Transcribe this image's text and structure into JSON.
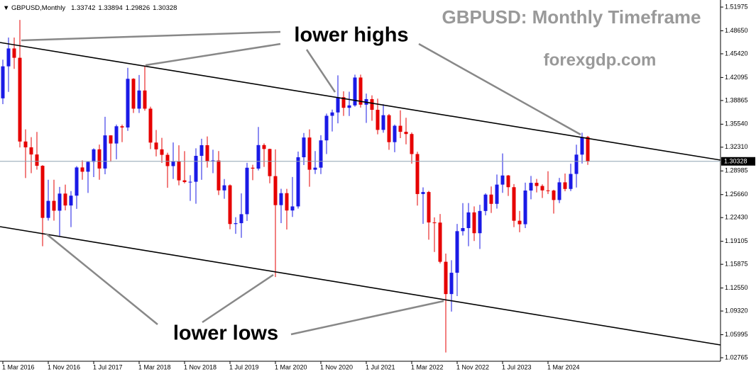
{
  "chart_data": {
    "type": "candlestick",
    "title": "GBPUSD: Monthly Timeframe",
    "subtitle": "forexgdp.com",
    "symbol": "GBPUSD,Monthly",
    "annotations": [
      "lower highs",
      "lower lows"
    ],
    "up_color": "#1a1ae6",
    "down_color": "#e60000",
    "categories": [
      "1 Mar 2016",
      null,
      null,
      null,
      null,
      null,
      null,
      null,
      "1 Nov 2016",
      null,
      null,
      null,
      null,
      null,
      null,
      null,
      "1 Jul 2017",
      null,
      null,
      null,
      null,
      null,
      null,
      null,
      "1 Mar 2018",
      null,
      null,
      null,
      null,
      null,
      null,
      null,
      "1 Nov 2018",
      null,
      null,
      null,
      null,
      null,
      null,
      null,
      "1 Jul 2019",
      null,
      null,
      null,
      null,
      null,
      null,
      null,
      "1 Mar 2020",
      null,
      null,
      null,
      null,
      null,
      null,
      null,
      "1 Nov 2020",
      null,
      null,
      null,
      null,
      null,
      null,
      null,
      "1 Jul 2021",
      null,
      null,
      null,
      null,
      null,
      null,
      null,
      "1 Mar 2022",
      null,
      null,
      null,
      null,
      null,
      null,
      null,
      "1 Nov 2022",
      null,
      null,
      null,
      null,
      null,
      null,
      null,
      "1 Jul 2023",
      null,
      null,
      null,
      null,
      null,
      null,
      null,
      "1 Mar 2024",
      null,
      null,
      null,
      null,
      null,
      null,
      null
    ],
    "open": [
      1.3917,
      1.4366,
      1.4617,
      1.4486,
      1.3311,
      1.3229,
      1.3129,
      1.297,
      1.2239,
      1.2478,
      1.234,
      1.258,
      1.2413,
      1.2551,
      1.2947,
      1.2887,
      1.3025,
      1.3201,
      1.2932,
      1.3397,
      1.3283,
      1.3525,
      1.3508,
      1.4191,
      1.3772,
      1.4027,
      1.3772,
      1.3296,
      1.3201,
      1.3124,
      1.2966,
      1.3031,
      1.2766,
      1.2742,
      1.2746,
      1.311,
      1.3259,
      1.3031,
      1.3045,
      1.2625,
      1.2696,
      1.2153,
      1.2165,
      1.2291,
      1.2943,
      1.2931,
      1.3261,
      1.3206,
      1.2825,
      1.2418,
      1.2586,
      1.2343,
      1.24,
      1.309,
      1.3367,
      1.2915,
      1.2944,
      1.3327,
      1.3672,
      1.3719,
      1.3933,
      1.3784,
      1.3818,
      1.4209,
      1.3828,
      1.3906,
      1.3756,
      1.3474,
      1.368,
      1.3302,
      1.3532,
      1.3447,
      1.3416,
      1.3135,
      1.2574,
      1.2602,
      1.2175,
      1.2173,
      1.1623,
      1.117,
      1.1469,
      1.2053,
      1.2096,
      1.2316,
      1.2024,
      1.2336,
      1.2566,
      1.2436,
      1.2706,
      1.2834,
      1.267,
      1.2199,
      1.215,
      1.2623,
      1.2731,
      1.2687,
      1.2625,
      1.2623,
      1.249,
      1.2738,
      1.2645,
      1.2856,
      1.3127,
      1.33742
    ],
    "high": [
      1.4459,
      1.477,
      1.477,
      1.5018,
      1.3482,
      1.3372,
      1.3445,
      1.2979,
      1.2775,
      1.2775,
      1.2674,
      1.2706,
      1.2615,
      1.2966,
      1.3047,
      1.303,
      1.3216,
      1.3268,
      1.3658,
      1.34,
      1.3549,
      1.3549,
      1.4345,
      1.42,
      1.4245,
      1.4377,
      1.38,
      1.3473,
      1.3362,
      1.3153,
      1.3298,
      1.3258,
      1.3176,
      1.2838,
      1.3215,
      1.335,
      1.3382,
      1.3196,
      1.3177,
      1.2784,
      1.2709,
      1.2249,
      1.2583,
      1.3012,
      1.2985,
      1.3515,
      1.3284,
      1.3211,
      1.3201,
      1.2648,
      1.2646,
      1.2813,
      1.3169,
      1.3431,
      1.3482,
      1.3177,
      1.3399,
      1.3703,
      1.3758,
      1.424,
      1.4016,
      1.4009,
      1.4249,
      1.425,
      1.3984,
      1.3959,
      1.3913,
      1.3835,
      1.3698,
      1.3548,
      1.3749,
      1.3644,
      1.3438,
      1.3167,
      1.2667,
      1.2618,
      1.2246,
      1.2293,
      1.1738,
      1.1645,
      1.2154,
      1.2446,
      1.2448,
      1.2401,
      1.2423,
      1.2584,
      1.268,
      1.2848,
      1.3143,
      1.2842,
      1.2713,
      1.2337,
      1.2733,
      1.2828,
      1.2785,
      1.271,
      1.2894,
      1.2634,
      1.2801,
      1.2861,
      1.2999,
      1.3266,
      1.3434,
      1.33894
    ],
    "low": [
      1.3836,
      1.4007,
      1.433,
      1.3228,
      1.2798,
      1.2866,
      1.2916,
      1.1841,
      1.2201,
      1.22,
      1.1987,
      1.2345,
      1.2109,
      1.2365,
      1.2774,
      1.2589,
      1.2812,
      1.2774,
      1.2852,
      1.3027,
      1.3062,
      1.3302,
      1.346,
      1.3712,
      1.3711,
      1.3744,
      1.3204,
      1.3102,
      1.3011,
      1.2661,
      1.2786,
      1.2696,
      1.2723,
      1.2477,
      1.2438,
      1.2773,
      1.2945,
      1.2866,
      1.2559,
      1.2507,
      1.208,
      1.2015,
      1.1959,
      1.2196,
      1.2768,
      1.2905,
      1.2954,
      1.2725,
      1.1409,
      1.2165,
      1.2076,
      1.2252,
      1.2369,
      1.2981,
      1.2676,
      1.2855,
      1.2854,
      1.3135,
      1.3452,
      1.3566,
      1.367,
      1.3669,
      1.38,
      1.3787,
      1.3572,
      1.3602,
      1.3412,
      1.3434,
      1.3194,
      1.3161,
      1.3358,
      1.3272,
      1.3,
      1.2411,
      1.2155,
      1.1933,
      1.176,
      1.16,
      1.035,
      1.0924,
      1.1142,
      1.1992,
      1.1841,
      1.1915,
      1.1803,
      1.2275,
      1.2308,
      1.2369,
      1.2591,
      1.2547,
      1.211,
      1.2037,
      1.2096,
      1.25,
      1.2597,
      1.2518,
      1.2574,
      1.23,
      1.2446,
      1.2613,
      1.2615,
      1.2665,
      1.3002,
      1.29826
    ],
    "close": [
      1.4366,
      1.4617,
      1.4486,
      1.3311,
      1.3229,
      1.3129,
      1.297,
      1.2239,
      1.2478,
      1.234,
      1.258,
      1.2413,
      1.2551,
      1.2947,
      1.2887,
      1.3025,
      1.3201,
      1.2932,
      1.3397,
      1.3283,
      1.3525,
      1.3508,
      1.4191,
      1.3772,
      1.4027,
      1.3772,
      1.3296,
      1.3201,
      1.3124,
      1.2966,
      1.3031,
      1.2766,
      1.2742,
      1.2746,
      1.311,
      1.3259,
      1.3031,
      1.3045,
      1.2625,
      1.2696,
      1.2153,
      1.2165,
      1.2291,
      1.2943,
      1.2931,
      1.3261,
      1.3206,
      1.2825,
      1.2418,
      1.2586,
      1.2343,
      1.24,
      1.309,
      1.3367,
      1.2915,
      1.2944,
      1.3327,
      1.3672,
      1.3719,
      1.3933,
      1.3784,
      1.3818,
      1.4209,
      1.3828,
      1.3906,
      1.3756,
      1.3474,
      1.368,
      1.3302,
      1.3532,
      1.3447,
      1.3416,
      1.3135,
      1.2574,
      1.2602,
      1.2175,
      1.2173,
      1.1623,
      1.117,
      1.1469,
      1.2053,
      1.2096,
      1.2316,
      1.2024,
      1.2336,
      1.2566,
      1.2436,
      1.2706,
      1.2834,
      1.267,
      1.2199,
      1.215,
      1.2623,
      1.2731,
      1.2687,
      1.2625,
      1.2623,
      1.249,
      1.2738,
      1.2645,
      1.2856,
      1.3127,
      1.3374,
      1.30328
    ],
    "ylim": [
      1.0227,
      1.5297
    ],
    "yticks": [
      1.51975,
      {
        "value": 1.4865,
        "label": "1.48650"
      },
      {
        "value": 1.4542,
        "label": "1.45420"
      },
      1.42095,
      1.38865,
      {
        "value": 1.3554,
        "label": "1.35540"
      },
      {
        "value": 1.3231,
        "label": "1.32310"
      },
      1.28985,
      {
        "value": 1.2566,
        "label": "1.25660"
      },
      {
        "value": 1.2243,
        "label": "1.22430"
      },
      1.19105,
      1.15875,
      {
        "value": 1.1255,
        "label": "1.12550"
      },
      {
        "value": 1.0932,
        "label": "1.09320"
      },
      1.05995,
      1.02765
    ]
  }
}
